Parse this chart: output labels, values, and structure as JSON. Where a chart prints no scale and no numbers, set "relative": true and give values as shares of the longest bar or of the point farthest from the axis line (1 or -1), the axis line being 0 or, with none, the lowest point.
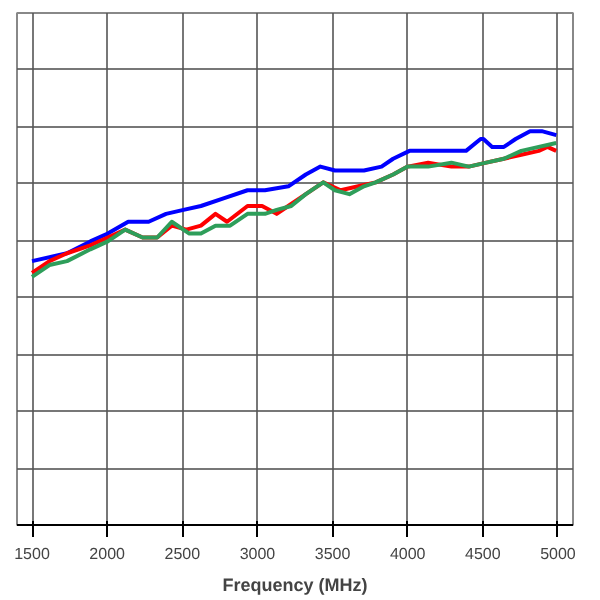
{
  "chart_data": {
    "type": "line",
    "xlabel": "Frequency (MHz)",
    "relative": true,
    "grid": true,
    "line_style": "solid",
    "xlim": [
      1400,
      5100
    ],
    "xticks": [
      1500,
      2000,
      2500,
      3000,
      3500,
      4000,
      4500,
      5000
    ],
    "series": [
      {
        "color": "#0000ff",
        "x": [
          1500,
          1733,
          1888,
          2004,
          2140,
          2276,
          2392,
          2508,
          2624,
          2779,
          2934,
          3050,
          3206,
          3322,
          3419,
          3516,
          3593,
          3709,
          3826,
          3903,
          4012,
          4136,
          4213,
          4291,
          4388,
          4485,
          4504,
          4562,
          4640,
          4718,
          4814,
          4892,
          4989
        ],
        "values": [
          0.67,
          0.69,
          0.72,
          0.74,
          0.77,
          0.77,
          0.79,
          0.8,
          0.81,
          0.83,
          0.85,
          0.85,
          0.86,
          0.89,
          0.91,
          0.9,
          0.9,
          0.9,
          0.91,
          0.93,
          0.95,
          0.95,
          0.95,
          0.95,
          0.95,
          0.98,
          0.98,
          0.96,
          0.96,
          0.98,
          1.0,
          1.0,
          0.99
        ]
      },
      {
        "color": "#ff0000",
        "x": [
          1500,
          1616,
          1733,
          1888,
          2004,
          2120,
          2236,
          2333,
          2430,
          2527,
          2624,
          2721,
          2798,
          2934,
          3031,
          3128,
          3205,
          3322,
          3438,
          3554,
          3671,
          3787,
          3903,
          4000,
          4136,
          4291,
          4407,
          4523,
          4640,
          4756,
          4872,
          4930,
          4988
        ],
        "values": [
          0.64,
          0.67,
          0.69,
          0.71,
          0.73,
          0.75,
          0.73,
          0.73,
          0.76,
          0.75,
          0.76,
          0.79,
          0.77,
          0.81,
          0.81,
          0.79,
          0.81,
          0.84,
          0.87,
          0.85,
          0.86,
          0.87,
          0.89,
          0.91,
          0.92,
          0.91,
          0.91,
          0.92,
          0.93,
          0.94,
          0.95,
          0.96,
          0.95
        ]
      },
      {
        "color": "#2e9e5a",
        "x": [
          1500,
          1616,
          1733,
          1888,
          2004,
          2120,
          2236,
          2333,
          2430,
          2547,
          2624,
          2721,
          2818,
          2934,
          3050,
          3128,
          3225,
          3322,
          3438,
          3516,
          3612,
          3709,
          3787,
          3903,
          4000,
          4136,
          4291,
          4407,
          4523,
          4640,
          4756,
          4872,
          4988
        ],
        "values": [
          0.63,
          0.66,
          0.67,
          0.7,
          0.72,
          0.75,
          0.73,
          0.73,
          0.77,
          0.74,
          0.74,
          0.76,
          0.76,
          0.79,
          0.79,
          0.8,
          0.81,
          0.84,
          0.87,
          0.85,
          0.84,
          0.86,
          0.87,
          0.89,
          0.91,
          0.91,
          0.92,
          0.91,
          0.92,
          0.93,
          0.95,
          0.96,
          0.97
        ]
      }
    ]
  }
}
